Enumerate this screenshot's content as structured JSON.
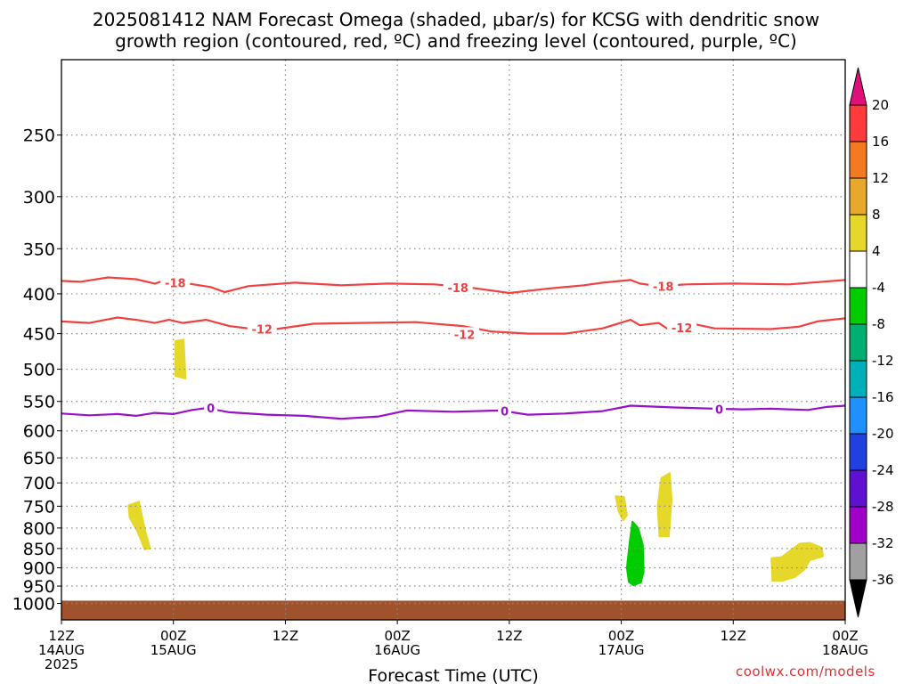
{
  "header": {
    "title_line_1": "2025081412 NAM Forecast Omega (shaded, μbar/s) for KCSG with dendritic snow",
    "title_line_2": "growth region (contoured, red, ºC) and freezing level (contoured, purple, ºC)"
  },
  "credit": "coolwx.com/models",
  "chart_data": {
    "type": "time-height contour",
    "xlabel": "Forecast Time (UTC)",
    "ylabel": "",
    "x_range_hours": [
      0,
      84
    ],
    "y_log_scale": true,
    "y_range_hPa": [
      1050,
      200
    ],
    "grid": true,
    "x_ticks": [
      {
        "hour": 0,
        "line1": "12Z",
        "line2": "14AUG",
        "line3": "2025"
      },
      {
        "hour": 12,
        "line1": "00Z",
        "line2": "15AUG",
        "line3": ""
      },
      {
        "hour": 24,
        "line1": "12Z",
        "line2": "",
        "line3": ""
      },
      {
        "hour": 36,
        "line1": "00Z",
        "line2": "16AUG",
        "line3": ""
      },
      {
        "hour": 48,
        "line1": "12Z",
        "line2": "",
        "line3": ""
      },
      {
        "hour": 60,
        "line1": "00Z",
        "line2": "17AUG",
        "line3": ""
      },
      {
        "hour": 72,
        "line1": "12Z",
        "line2": "",
        "line3": ""
      },
      {
        "hour": 84,
        "line1": "00Z",
        "line2": "18AUG",
        "line3": ""
      }
    ],
    "y_ticks": [
      "250",
      "300",
      "350",
      "400",
      "450",
      "500",
      "550",
      "600",
      "650",
      "700",
      "750",
      "800",
      "850",
      "900",
      "950",
      "1000"
    ],
    "colorbar": {
      "labels": [
        "20",
        "16",
        "12",
        "8",
        "4",
        "-4",
        "-8",
        "-12",
        "-16",
        "-20",
        "-24",
        "-28",
        "-32",
        "-36"
      ],
      "colors_top_to_bottom": [
        "#ff3a3a",
        "#f47a22",
        "#e8a82c",
        "#e6d82a",
        "#ffffff",
        "#00cc00",
        "#00b070",
        "#00b0b8",
        "#1e90ff",
        "#2040e0",
        "#6010d0",
        "#a000c8",
        "#a0a0a0"
      ],
      "top_arrow_color": "#e0107a",
      "bottom_arrow_color": "#000000"
    },
    "contours": [
      {
        "name": "-18",
        "color": "#f04040",
        "labels": [
          {
            "hour": 12.2,
            "p": 387
          },
          {
            "hour": 42.5,
            "p": 393
          },
          {
            "hour": 64.5,
            "p": 391
          }
        ],
        "points": [
          [
            0,
            385
          ],
          [
            2,
            386
          ],
          [
            5,
            381
          ],
          [
            8,
            383
          ],
          [
            10,
            388
          ],
          [
            11.5,
            383
          ],
          [
            13,
            387
          ],
          [
            16,
            392
          ],
          [
            17.5,
            398
          ],
          [
            20,
            391
          ],
          [
            25,
            387
          ],
          [
            30,
            390
          ],
          [
            35,
            388
          ],
          [
            40,
            389
          ],
          [
            44,
            393
          ],
          [
            48,
            399
          ],
          [
            52,
            394
          ],
          [
            56,
            390
          ],
          [
            58,
            387
          ],
          [
            61,
            384
          ],
          [
            62,
            388
          ],
          [
            64,
            391
          ],
          [
            67,
            389
          ],
          [
            72,
            388
          ],
          [
            78,
            389
          ],
          [
            84,
            384
          ]
        ]
      },
      {
        "name": "-12",
        "color": "#f04040",
        "labels": [
          {
            "hour": 21.5,
            "p": 444
          },
          {
            "hour": 43.2,
            "p": 451
          },
          {
            "hour": 66.5,
            "p": 442
          }
        ],
        "points": [
          [
            0,
            434
          ],
          [
            3,
            436
          ],
          [
            6,
            429
          ],
          [
            8,
            432
          ],
          [
            10,
            436
          ],
          [
            11.5,
            432
          ],
          [
            13,
            436
          ],
          [
            15.5,
            432
          ],
          [
            18,
            440
          ],
          [
            20,
            443
          ],
          [
            23,
            444
          ],
          [
            27,
            437
          ],
          [
            32,
            436
          ],
          [
            38,
            435
          ],
          [
            43,
            440
          ],
          [
            46,
            447
          ],
          [
            50,
            450
          ],
          [
            54,
            450
          ],
          [
            58,
            443
          ],
          [
            61,
            432
          ],
          [
            62,
            439
          ],
          [
            64,
            436
          ],
          [
            65,
            444
          ],
          [
            68,
            438
          ],
          [
            70,
            443
          ],
          [
            76,
            444
          ],
          [
            79,
            441
          ],
          [
            81,
            434
          ],
          [
            84,
            430
          ]
        ]
      },
      {
        "name": "0",
        "color": "#9a10c8",
        "labels": [
          {
            "hour": 16,
            "p": 561
          },
          {
            "hour": 47.5,
            "p": 566
          },
          {
            "hour": 70.5,
            "p": 563
          }
        ],
        "points": [
          [
            0,
            570
          ],
          [
            3,
            573
          ],
          [
            6,
            571
          ],
          [
            8,
            574
          ],
          [
            10,
            569
          ],
          [
            12,
            571
          ],
          [
            14,
            564
          ],
          [
            15.5,
            561
          ],
          [
            18,
            568
          ],
          [
            22,
            572
          ],
          [
            26,
            574
          ],
          [
            30,
            579
          ],
          [
            34,
            575
          ],
          [
            37,
            565
          ],
          [
            42,
            567
          ],
          [
            47,
            565
          ],
          [
            50,
            572
          ],
          [
            54,
            570
          ],
          [
            58,
            566
          ],
          [
            61,
            557
          ],
          [
            66,
            560
          ],
          [
            70,
            562
          ],
          [
            73,
            563
          ],
          [
            76,
            562
          ],
          [
            78,
            563
          ],
          [
            80,
            564
          ],
          [
            82,
            559
          ],
          [
            84,
            557
          ]
        ]
      }
    ],
    "omega_patches": [
      {
        "name": "yellow-4-8",
        "color": "#e6d82a",
        "points": [
          [
            12.2,
            460
          ],
          [
            13.1,
            458
          ],
          [
            13.3,
            514
          ],
          [
            12.2,
            510
          ]
        ]
      },
      {
        "name": "yellow-4-8",
        "color": "#e6d82a",
        "points": [
          [
            7.2,
            748
          ],
          [
            8.3,
            740
          ],
          [
            8.9,
            800
          ],
          [
            9.5,
            850
          ],
          [
            8.9,
            852
          ],
          [
            8.2,
            810
          ],
          [
            7.3,
            775
          ]
        ]
      },
      {
        "name": "yellow-4-8",
        "color": "#e6d82a",
        "points": [
          [
            59.4,
            728
          ],
          [
            60.3,
            730
          ],
          [
            60.6,
            770
          ],
          [
            60.2,
            782
          ],
          [
            59.7,
            760
          ]
        ]
      },
      {
        "name": "yellow-4-8",
        "color": "#e6d82a",
        "points": [
          [
            64.3,
            690
          ],
          [
            65.2,
            680
          ],
          [
            65.4,
            735
          ],
          [
            65.1,
            820
          ],
          [
            64.1,
            820
          ],
          [
            63.9,
            750
          ]
        ]
      },
      {
        "name": "green-neg4-neg8",
        "color": "#00cc00",
        "points": [
          [
            61.2,
            785
          ],
          [
            61.8,
            800
          ],
          [
            62.3,
            840
          ],
          [
            62.4,
            910
          ],
          [
            62.1,
            940
          ],
          [
            61.3,
            948
          ],
          [
            60.8,
            938
          ],
          [
            60.6,
            900
          ],
          [
            60.9,
            835
          ]
        ]
      },
      {
        "name": "yellow-4-8",
        "color": "#e6d82a",
        "points": [
          [
            79.1,
            838
          ],
          [
            80.2,
            836
          ],
          [
            81.5,
            848
          ],
          [
            81.6,
            870
          ],
          [
            80.2,
            880
          ],
          [
            79.6,
            905
          ],
          [
            78.6,
            925
          ],
          [
            77.3,
            935
          ],
          [
            76.2,
            935
          ],
          [
            76.1,
            875
          ],
          [
            77.2,
            872
          ]
        ]
      }
    ],
    "surface_fill": {
      "color": "#a0522d",
      "top_p": 992
    }
  }
}
